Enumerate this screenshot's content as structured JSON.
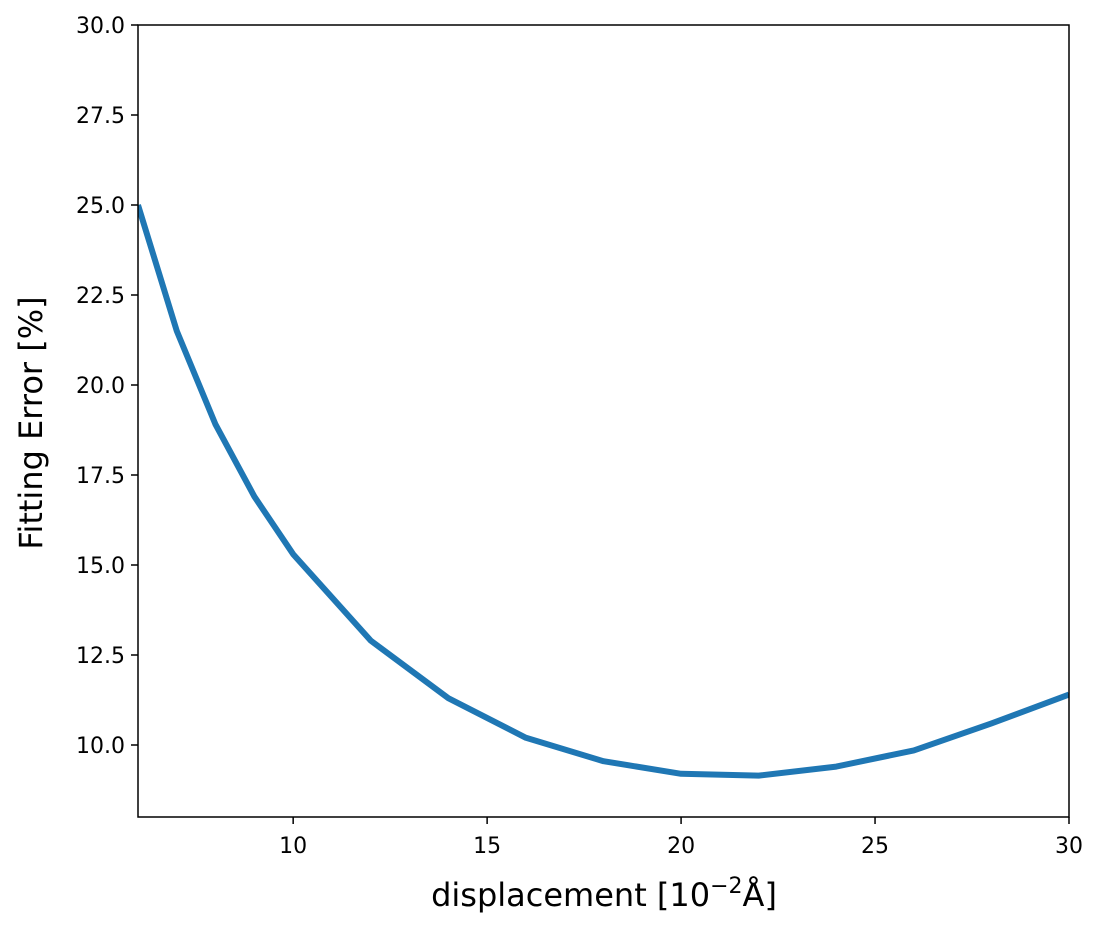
{
  "chart_data": {
    "type": "line",
    "title": "",
    "xlabel": "displacement [10",
    "xlabel_sup": "−2",
    "xlabel_tail": "Å]",
    "ylabel": "Fitting Error [%]",
    "xlim": [
      6,
      30
    ],
    "ylim": [
      8.0,
      30.0
    ],
    "xticks": [
      10,
      15,
      20,
      25,
      30
    ],
    "xtick_labels": [
      "10",
      "15",
      "20",
      "25",
      "30"
    ],
    "yticks": [
      10.0,
      12.5,
      15.0,
      17.5,
      20.0,
      22.5,
      25.0,
      27.5,
      30.0
    ],
    "ytick_labels": [
      "10.0",
      "12.5",
      "15.0",
      "17.5",
      "20.0",
      "22.5",
      "25.0",
      "27.5",
      "30.0"
    ],
    "grid": false,
    "series": [
      {
        "color": "#1f77b4",
        "x": [
          6,
          7,
          8,
          9,
          10,
          12,
          14,
          16,
          18,
          20,
          22,
          24,
          26,
          28,
          30
        ],
        "y": [
          25.0,
          21.5,
          18.9,
          16.9,
          15.3,
          12.9,
          11.3,
          10.2,
          9.55,
          9.2,
          9.15,
          9.4,
          9.85,
          10.6,
          11.4
        ]
      }
    ]
  }
}
